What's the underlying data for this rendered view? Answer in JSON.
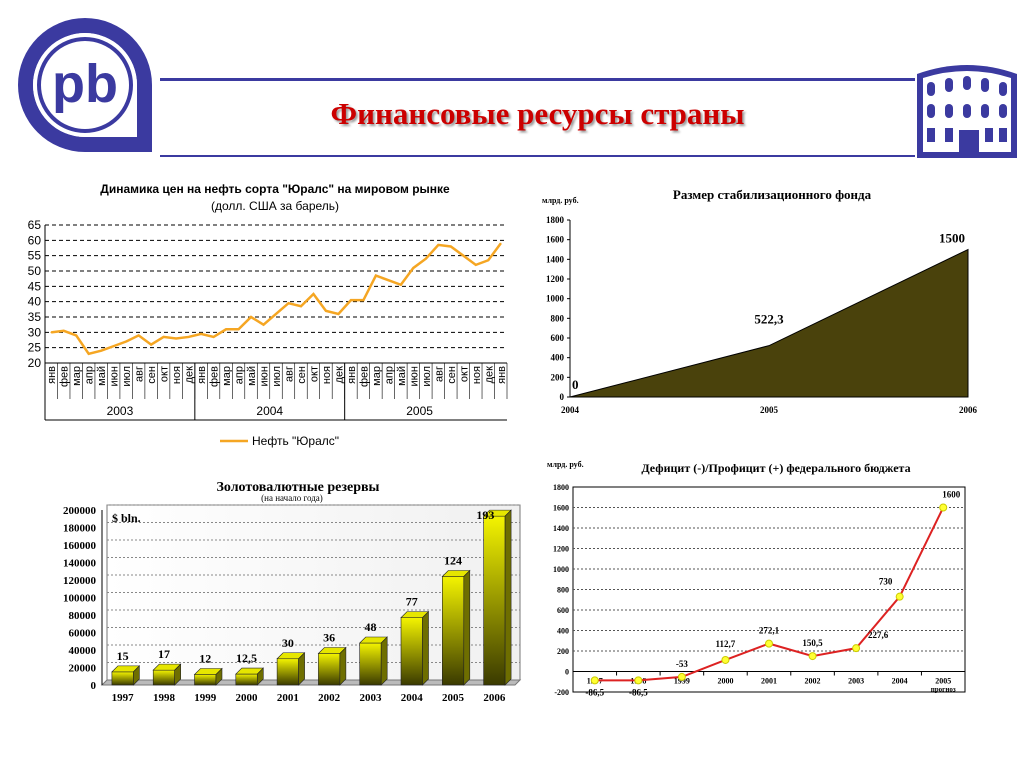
{
  "title": "Финансовые ресурсы страны",
  "logo": {
    "text": "pb"
  },
  "colors": {
    "brand": "#3b3aa0",
    "title": "#cc0000",
    "oil": "#f5a623",
    "fund": "#4a420c",
    "budget": "#dd2222"
  },
  "icons": {
    "logo": "pb-logo-icon",
    "building": "building-icon"
  },
  "chart_data": [
    {
      "type": "line",
      "title": "Динамика цен на нефть сорта \"Юралс\" на мировом рынке",
      "subtitle": "(долл. США за барель)",
      "ylim": [
        20,
        65
      ],
      "yticks": [
        "20",
        "25",
        "30",
        "35",
        "40",
        "45",
        "50",
        "55",
        "60",
        "65"
      ],
      "years": [
        "2003",
        "2004",
        "2005"
      ],
      "months": [
        "янв",
        "фев",
        "мар",
        "апр",
        "май",
        "июн",
        "июл",
        "авг",
        "сен",
        "окт",
        "ноя",
        "дек",
        "янв",
        "фев",
        "мар",
        "апр",
        "май",
        "июн",
        "июл",
        "авг",
        "сен",
        "окт",
        "ноя",
        "дек",
        "янв",
        "фев",
        "мар",
        "апр",
        "май",
        "июн",
        "июл",
        "авг",
        "сен",
        "окт",
        "ноя",
        "дек",
        "янв"
      ],
      "series": [
        {
          "name": "Нефть \"Юралс\"",
          "values": [
            30,
            30.5,
            29,
            23,
            24,
            25.5,
            27,
            29,
            26,
            28.5,
            28,
            28.5,
            29.5,
            28.5,
            31,
            31,
            35,
            32.5,
            36,
            39.5,
            38.5,
            42.5,
            37,
            36,
            40.5,
            40.5,
            48.5,
            47,
            45.5,
            51,
            54,
            58.5,
            58,
            55,
            52,
            53.5,
            59
          ]
        }
      ]
    },
    {
      "type": "area",
      "title": "Размер стабилизационного фонда",
      "unit_label": "млрд. руб.",
      "x": [
        "2004",
        "2005",
        "2006"
      ],
      "values": [
        0,
        522.3,
        1500
      ],
      "value_labels": [
        "0",
        "522,3",
        "1500"
      ],
      "ylim": [
        0,
        1800
      ],
      "yticks": [
        "0",
        "200",
        "400",
        "600",
        "800",
        "1000",
        "1200",
        "1400",
        "1600",
        "1800"
      ]
    },
    {
      "type": "bar",
      "title": "Золотовалютные резервы",
      "subtitle": "(на начало года)",
      "unit_label": "$ bln.",
      "categories": [
        "1997",
        "1998",
        "1999",
        "2000",
        "2001",
        "2002",
        "2003",
        "2004",
        "2005",
        "2006"
      ],
      "values": [
        15000,
        17000,
        12000,
        12500,
        30000,
        36000,
        48000,
        77000,
        124000,
        193000
      ],
      "value_labels": [
        "15",
        "17",
        "12",
        "12,5",
        "30",
        "36",
        "48",
        "77",
        "124",
        "193"
      ],
      "ylim": [
        0,
        200000
      ],
      "yticks": [
        "0",
        "20000",
        "40000",
        "60000",
        "80000",
        "100000",
        "120000",
        "140000",
        "160000",
        "180000",
        "200000"
      ]
    },
    {
      "type": "line",
      "title": "Дефицит (-)/Профицит (+) федерального бюджета",
      "unit_label": "млрд. руб.",
      "categories": [
        "1997",
        "1998",
        "1999",
        "2000",
        "2001",
        "2002",
        "2003",
        "2004",
        "2005"
      ],
      "category_note": "прогноз",
      "values": [
        -86.5,
        -86.5,
        -53,
        112.7,
        272.1,
        150.5,
        227.6,
        730,
        1600
      ],
      "value_labels": [
        "-86,5",
        "-86,5",
        "-53",
        "112,7",
        "272,1",
        "150,5",
        "227,6",
        "730",
        "1600"
      ],
      "ylim": [
        -200,
        1800
      ],
      "yticks": [
        "-200",
        "0",
        "200",
        "400",
        "600",
        "800",
        "1000",
        "1200",
        "1400",
        "1600",
        "1800"
      ]
    }
  ]
}
